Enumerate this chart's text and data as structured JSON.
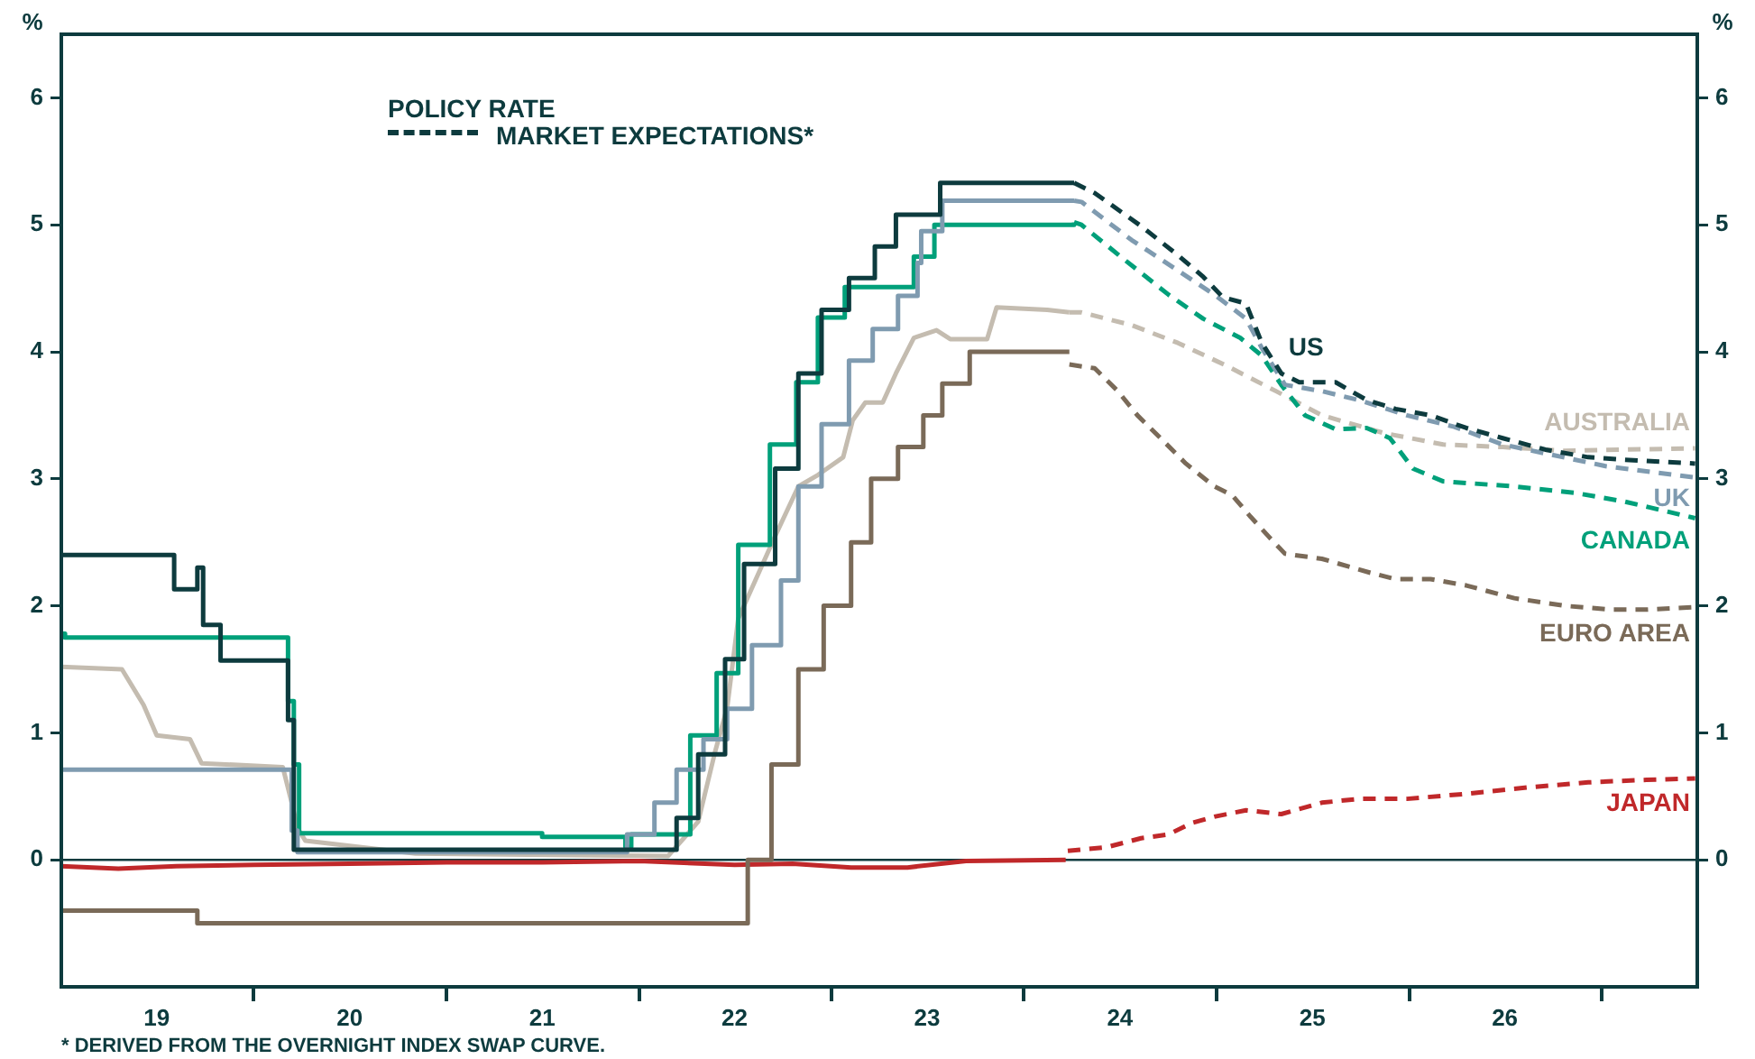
{
  "chart_data": {
    "type": "line",
    "ylabel": "%",
    "y2label": "%",
    "annotations": [
      "POLICY RATE",
      "MARKET EXPECTATIONS*",
      "* DERIVED FROM THE OVERNIGHT INDEX SWAP CURVE."
    ],
    "xlim": [
      "2019-01-01",
      "2027-07-01"
    ],
    "xticks": [
      {
        "value": "2019-07-01",
        "label": "19"
      },
      {
        "value": "2020-01-01",
        "label": null
      },
      {
        "value": "2020-07-01",
        "label": "20"
      },
      {
        "value": "2021-01-01",
        "label": null
      },
      {
        "value": "2021-07-01",
        "label": "21"
      },
      {
        "value": "2022-01-01",
        "label": null
      },
      {
        "value": "2022-07-01",
        "label": "22"
      },
      {
        "value": "2023-01-01",
        "label": null
      },
      {
        "value": "2023-07-01",
        "label": "23"
      },
      {
        "value": "2024-01-01",
        "label": null
      },
      {
        "value": "2024-07-01",
        "label": "24"
      },
      {
        "value": "2025-01-01",
        "label": null
      },
      {
        "value": "2025-07-01",
        "label": "25"
      },
      {
        "value": "2026-01-01",
        "label": null
      },
      {
        "value": "2026-07-01",
        "label": "26"
      },
      {
        "value": "2027-01-01",
        "label": null
      }
    ],
    "ylim": [
      -1,
      6.5
    ],
    "yticks": [
      0,
      1,
      2,
      3,
      4,
      5,
      6
    ],
    "y2lim": [
      -1,
      6.5
    ],
    "y2ticks": [
      0,
      1,
      2,
      3,
      4,
      5,
      6
    ],
    "grid": false,
    "legend": false,
    "marker": "none",
    "ref_lines": [
      {
        "axis": "y",
        "value": 0,
        "color": "#0d3b3e"
      }
    ],
    "series": [
      {
        "type": "step",
        "color": "#0d3b3e",
        "line_style": "solid",
        "x": [
          "2019-01-01",
          "2019-08-03",
          "2019-09-16",
          "2019-09-27",
          "2019-10-30",
          "2020-03-06",
          "2020-03-17",
          "2022-03-13",
          "2022-04-23",
          "2022-06-13",
          "2022-07-19",
          "2022-09-16",
          "2022-10-30",
          "2022-12-13",
          "2023-02-03",
          "2023-03-24",
          "2023-05-03",
          "2023-07-26",
          "2024-04-05"
        ],
        "values": [
          2.4,
          2.13,
          2.3,
          1.85,
          1.57,
          1.1,
          0.08,
          0.33,
          0.83,
          1.58,
          2.33,
          3.08,
          3.83,
          4.33,
          4.58,
          4.83,
          5.08,
          5.33,
          5.33
        ]
      },
      {
        "name": "US",
        "color": "#0d3b3e",
        "line_style": "dashed",
        "x": [
          "2024-04-05",
          "2024-05-14",
          "2024-08-10",
          "2024-10-19",
          "2024-12-06",
          "2025-01-12",
          "2025-02-25",
          "2025-03-27",
          "2025-05-03",
          "2025-06-06",
          "2025-08-14",
          "2025-10-12",
          "2025-12-06",
          "2026-02-10",
          "2026-04-19",
          "2026-06-27",
          "2026-09-16",
          "2026-12-06",
          "2027-02-14",
          "2027-06-27"
        ],
        "values": [
          5.33,
          5.25,
          4.99,
          4.76,
          4.59,
          4.43,
          4.38,
          4.07,
          3.83,
          3.76,
          3.76,
          3.62,
          3.55,
          3.5,
          3.4,
          3.32,
          3.23,
          3.17,
          3.15,
          3.12
        ]
      },
      {
        "type": "step",
        "color": "#7f9bb0",
        "line_style": "solid",
        "x": [
          "2019-01-01",
          "2020-03-13",
          "2020-03-24",
          "2021-12-09",
          "2022-01-30",
          "2022-03-13",
          "2022-05-03",
          "2022-06-17",
          "2022-08-03",
          "2022-09-27",
          "2022-10-30",
          "2022-12-13",
          "2023-02-03",
          "2023-03-20",
          "2023-05-07",
          "2023-06-13",
          "2023-06-20",
          "2023-07-30",
          "2024-04-05"
        ],
        "values": [
          0.71,
          0.23,
          0.06,
          0.2,
          0.45,
          0.71,
          0.95,
          1.19,
          1.69,
          2.2,
          2.94,
          3.43,
          3.93,
          4.18,
          4.44,
          4.7,
          4.95,
          5.19,
          5.19
        ]
      },
      {
        "name": "UK",
        "color": "#7f9bb0",
        "line_style": "dashed",
        "x": [
          "2024-04-05",
          "2024-04-19",
          "2024-07-23",
          "2024-10-19",
          "2024-12-27",
          "2025-02-25",
          "2025-03-27",
          "2025-05-10",
          "2025-07-19",
          "2025-09-27",
          "2025-12-27",
          "2026-03-27",
          "2026-06-27",
          "2026-09-27",
          "2027-01-08",
          "2027-06-27"
        ],
        "values": [
          5.19,
          5.18,
          4.88,
          4.64,
          4.45,
          4.26,
          4.03,
          3.74,
          3.69,
          3.62,
          3.5,
          3.41,
          3.27,
          3.19,
          3.1,
          3.01
        ]
      },
      {
        "type": "step",
        "color": "#00a07a",
        "line_style": "solid",
        "x": [
          "2019-01-01",
          "2019-01-08",
          "2020-03-06",
          "2020-03-17",
          "2020-03-27",
          "2021-07-01",
          "2021-12-06",
          "2021-12-17",
          "2022-04-08",
          "2022-05-28",
          "2022-07-08",
          "2022-09-06",
          "2022-10-26",
          "2022-12-06",
          "2023-01-26",
          "2023-06-06",
          "2023-07-15",
          "2024-04-05"
        ],
        "values": [
          1.78,
          1.75,
          1.25,
          0.75,
          0.21,
          0.18,
          0.1,
          0.2,
          0.98,
          1.47,
          2.48,
          3.27,
          3.76,
          4.27,
          4.51,
          4.75,
          5.0,
          5.02
        ]
      },
      {
        "name": "CANADA",
        "color": "#00a07a",
        "line_style": "dashed",
        "x": [
          "2024-04-05",
          "2024-04-19",
          "2024-07-08",
          "2024-10-01",
          "2024-12-06",
          "2025-02-14",
          "2025-03-27",
          "2025-05-03",
          "2025-06-17",
          "2025-08-14",
          "2025-10-12",
          "2025-11-25",
          "2026-01-08",
          "2026-03-06",
          "2026-07-19",
          "2026-11-10",
          "2027-02-14",
          "2027-06-27"
        ],
        "values": [
          5.02,
          5.0,
          4.73,
          4.45,
          4.26,
          4.11,
          3.97,
          3.74,
          3.5,
          3.39,
          3.4,
          3.32,
          3.08,
          2.98,
          2.94,
          2.89,
          2.82,
          2.69
        ]
      },
      {
        "color": "#c4bcb0",
        "line_style": "solid",
        "x": [
          "2019-01-01",
          "2019-04-26",
          "2019-06-06",
          "2019-07-01",
          "2019-09-02",
          "2019-09-24",
          "2020-02-25",
          "2020-03-13",
          "2020-03-24",
          "2020-04-08",
          "2020-11-03",
          "2022-02-25",
          "2022-04-23",
          "2022-05-25",
          "2022-06-17",
          "2022-07-08",
          "2022-09-16",
          "2022-10-30",
          "2022-12-06",
          "2023-01-23",
          "2023-02-10",
          "2023-03-06",
          "2023-04-08",
          "2023-05-03",
          "2023-06-06",
          "2023-07-19",
          "2023-08-14",
          "2023-10-23",
          "2023-11-10",
          "2024-02-14",
          "2024-03-27"
        ],
        "values": [
          1.52,
          1.5,
          1.22,
          0.98,
          0.95,
          0.76,
          0.73,
          0.45,
          0.25,
          0.15,
          0.05,
          0.03,
          0.3,
          0.85,
          1.2,
          1.9,
          2.55,
          2.94,
          3.03,
          3.17,
          3.46,
          3.6,
          3.6,
          3.83,
          4.11,
          4.17,
          4.1,
          4.1,
          4.35,
          4.33,
          4.31
        ]
      },
      {
        "name": "AUSTRALIA",
        "color": "#c4bcb0",
        "line_style": "dashed",
        "x": [
          "2024-03-27",
          "2024-04-19",
          "2024-07-23",
          "2024-10-19",
          "2025-01-19",
          "2025-04-23",
          "2025-07-19",
          "2025-11-14",
          "2026-03-06",
          "2026-06-27",
          "2026-10-23",
          "2027-02-14",
          "2027-06-27"
        ],
        "values": [
          4.31,
          4.31,
          4.21,
          4.07,
          3.89,
          3.69,
          3.5,
          3.36,
          3.27,
          3.25,
          3.22,
          3.23,
          3.24
        ]
      },
      {
        "type": "step",
        "color": "#7a6a58",
        "line_style": "solid",
        "x": [
          "2019-01-01",
          "2019-09-16",
          "2022-07-26",
          "2022-09-09",
          "2022-10-30",
          "2022-12-17",
          "2023-02-07",
          "2023-03-17",
          "2023-05-07",
          "2023-06-24",
          "2023-07-30",
          "2023-09-20",
          "2024-03-27"
        ],
        "values": [
          -0.4,
          -0.5,
          0.0,
          0.75,
          1.5,
          2.0,
          2.5,
          3.0,
          3.25,
          3.5,
          3.75,
          4.0,
          4.0
        ]
      },
      {
        "name": "EURO AREA",
        "color": "#7a6a58",
        "line_style": "dashed",
        "x": [
          "2024-03-27",
          "2024-05-14",
          "2024-06-27",
          "2024-08-03",
          "2024-09-16",
          "2024-11-03",
          "2024-12-27",
          "2025-01-30",
          "2025-03-06",
          "2025-04-08",
          "2025-05-10",
          "2025-07-19",
          "2025-10-19",
          "2025-12-06",
          "2026-02-10",
          "2026-04-19",
          "2026-07-19",
          "2026-10-23",
          "2027-01-19",
          "2027-03-27",
          "2027-06-27"
        ],
        "values": [
          3.9,
          3.87,
          3.69,
          3.5,
          3.32,
          3.12,
          2.94,
          2.87,
          2.7,
          2.55,
          2.41,
          2.37,
          2.26,
          2.21,
          2.21,
          2.16,
          2.06,
          2.0,
          1.97,
          1.97,
          1.99
        ]
      },
      {
        "color": "#c0282a",
        "line_style": "solid",
        "x": [
          "2019-01-01",
          "2019-04-19",
          "2019-08-07",
          "2020-01-01",
          "2020-07-01",
          "2021-01-01",
          "2021-07-01",
          "2022-01-01",
          "2022-07-01",
          "2022-10-19",
          "2023-02-07",
          "2023-05-25",
          "2023-09-13",
          "2024-03-20"
        ],
        "values": [
          -0.05,
          -0.07,
          -0.05,
          -0.04,
          -0.03,
          -0.02,
          -0.02,
          -0.01,
          -0.04,
          -0.03,
          -0.06,
          -0.06,
          -0.01,
          0.0
        ]
      },
      {
        "name": "JAPAN",
        "color": "#c0282a",
        "line_style": "dashed",
        "x": [
          "2024-03-24",
          "2024-06-06",
          "2024-08-10",
          "2024-10-01",
          "2024-11-14",
          "2024-12-27",
          "2025-02-25",
          "2025-05-03",
          "2025-07-19",
          "2025-09-27",
          "2025-12-27",
          "2026-04-19",
          "2026-08-14",
          "2026-12-06",
          "2027-03-27",
          "2027-06-27"
        ],
        "values": [
          0.07,
          0.1,
          0.17,
          0.2,
          0.29,
          0.34,
          0.39,
          0.36,
          0.45,
          0.48,
          0.48,
          0.52,
          0.57,
          0.61,
          0.63,
          0.64
        ]
      }
    ]
  }
}
